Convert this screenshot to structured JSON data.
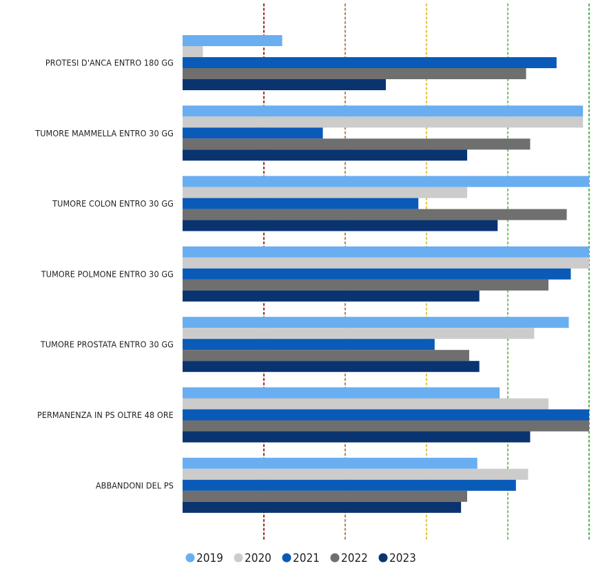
{
  "chart_data": {
    "type": "bar",
    "orientation": "horizontal",
    "categories": [
      "PROTESI D'ANCA ENTRO 180 GG",
      "TUMORE MAMMELLA ENTRO 30 GG",
      "TUMORE COLON ENTRO 30 GG",
      "TUMORE POLMONE ENTRO 30 GG",
      "TUMORE PROSTATA ENTRO 30 GG",
      "PERMANENZA IN PS OLTRE 48 ORE",
      "ABBANDONI DEL PS"
    ],
    "series": [
      {
        "name": "2019",
        "color": "#69aef0",
        "values": [
          2.45,
          9.85,
          10.0,
          10.0,
          9.5,
          7.8,
          7.25
        ]
      },
      {
        "name": "2020",
        "color": "#cccccc",
        "values": [
          0.5,
          9.85,
          7.0,
          10.0,
          8.65,
          9.0,
          8.5
        ]
      },
      {
        "name": "2021",
        "color": "#0a5bb8",
        "values": [
          9.2,
          3.45,
          5.8,
          9.55,
          6.2,
          10.0,
          8.2
        ]
      },
      {
        "name": "2022",
        "color": "#6f6f6f",
        "values": [
          8.45,
          8.55,
          9.45,
          9.0,
          7.05,
          10.0,
          7.0
        ]
      },
      {
        "name": "2023",
        "color": "#0a3470",
        "values": [
          5.0,
          7.0,
          7.75,
          7.3,
          7.3,
          8.55,
          6.85
        ]
      }
    ],
    "xlim": [
      0,
      10
    ],
    "reference_lines": [
      {
        "value": 2,
        "color": "#9b3426"
      },
      {
        "value": 4,
        "color": "#c08652"
      },
      {
        "value": 6,
        "color": "#e4c74a"
      },
      {
        "value": 8,
        "color": "#7fc46a"
      },
      {
        "value": 10,
        "color": "#5ab85a"
      }
    ],
    "title": "",
    "xlabel": "",
    "ylabel": "",
    "grid": false,
    "legend": "bottom"
  }
}
